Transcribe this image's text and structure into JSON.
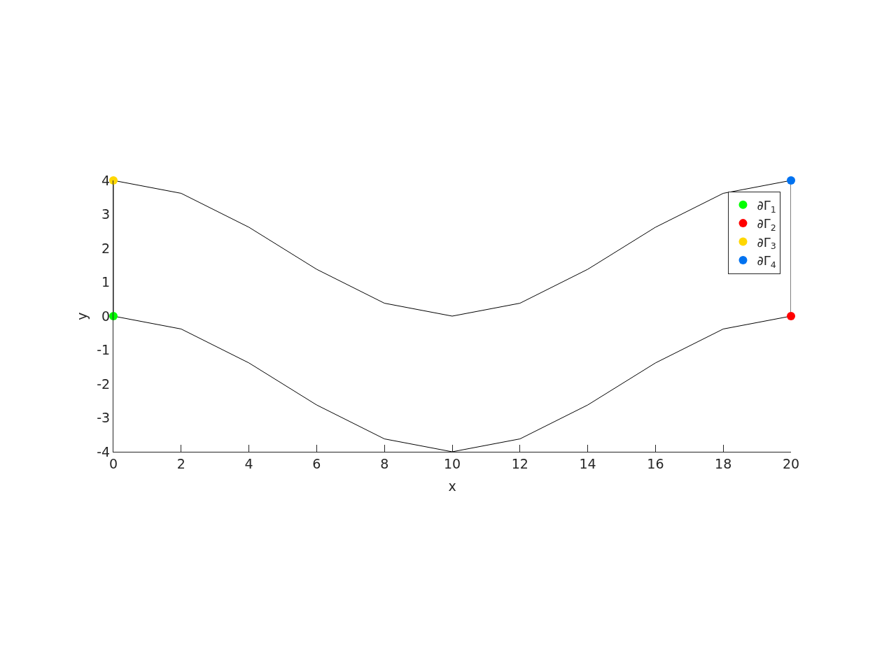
{
  "chart_data": {
    "type": "line",
    "xlabel": "x",
    "ylabel": "y",
    "xlim": [
      0,
      20
    ],
    "ylim": [
      -4,
      4
    ],
    "xticks": [
      0,
      2,
      4,
      6,
      8,
      10,
      12,
      14,
      16,
      18,
      20
    ],
    "yticks": [
      -4,
      -3,
      -2,
      -1,
      0,
      1,
      2,
      3,
      4
    ],
    "legend": "top right",
    "marker": "none",
    "line_style": "solid",
    "series": [
      {
        "color": "#000000",
        "x": [
          0,
          2,
          4,
          6,
          8,
          10,
          12,
          14,
          16,
          18,
          20
        ],
        "values": [
          0,
          -0.38,
          -1.38,
          -2.62,
          -3.62,
          -4,
          -3.62,
          -2.62,
          -1.38,
          -0.38,
          0
        ]
      },
      {
        "color": "#000000",
        "x": [
          0,
          2,
          4,
          6,
          8,
          10,
          12,
          14,
          16,
          18,
          20
        ],
        "values": [
          4,
          3.62,
          2.62,
          1.38,
          0.38,
          0,
          0.38,
          1.38,
          2.62,
          3.62,
          4
        ]
      },
      {
        "color": "#000000",
        "x": [
          0,
          0
        ],
        "values": [
          0,
          4
        ]
      },
      {
        "color": "#000000",
        "x": [
          20,
          20
        ],
        "values": [
          0,
          4
        ]
      },
      {
        "type": "scatter",
        "name": "∂Γ$_{1}$",
        "color": "#00ff00",
        "marker": "circle",
        "x": [
          0
        ],
        "values": [
          0
        ]
      },
      {
        "type": "scatter",
        "name": "∂Γ$_{2}$",
        "color": "#ff0000",
        "marker": "circle",
        "x": [
          20
        ],
        "values": [
          0
        ]
      },
      {
        "type": "scatter",
        "name": "∂Γ$_{3}$",
        "color": "#ffd700",
        "marker": "circle",
        "x": [
          0
        ],
        "values": [
          4
        ]
      },
      {
        "type": "scatter",
        "name": "∂Γ$_{4}$",
        "color": "#0072f0",
        "marker": "circle",
        "x": [
          20
        ],
        "values": [
          4
        ]
      }
    ]
  }
}
